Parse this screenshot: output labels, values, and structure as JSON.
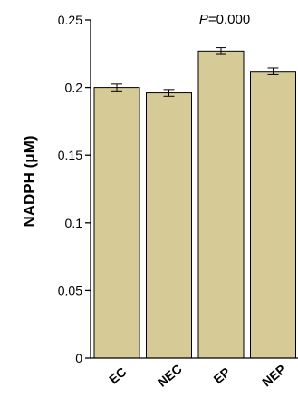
{
  "chart_data": {
    "type": "bar",
    "title": "",
    "xlabel": "",
    "ylabel": "NADPH (μM)",
    "annotation": {
      "prefix": "P",
      "text": "=0.000"
    },
    "categories": [
      "EC",
      "NEC",
      "EP",
      "NEP"
    ],
    "values": [
      0.2,
      0.196,
      0.227,
      0.212
    ],
    "errors": [
      0.0025,
      0.0025,
      0.0025,
      0.0025
    ],
    "ylim": [
      0,
      0.25
    ],
    "yticks": [
      0,
      0.05,
      0.1,
      0.15,
      0.2,
      0.25
    ],
    "ytick_labels": [
      "0",
      "0.05",
      "0.1",
      "0.15",
      "0.2",
      "0.25"
    ],
    "grid": false,
    "legend": "none",
    "bar_color": "#d6cb97",
    "bar_edge_color": "#000000"
  }
}
